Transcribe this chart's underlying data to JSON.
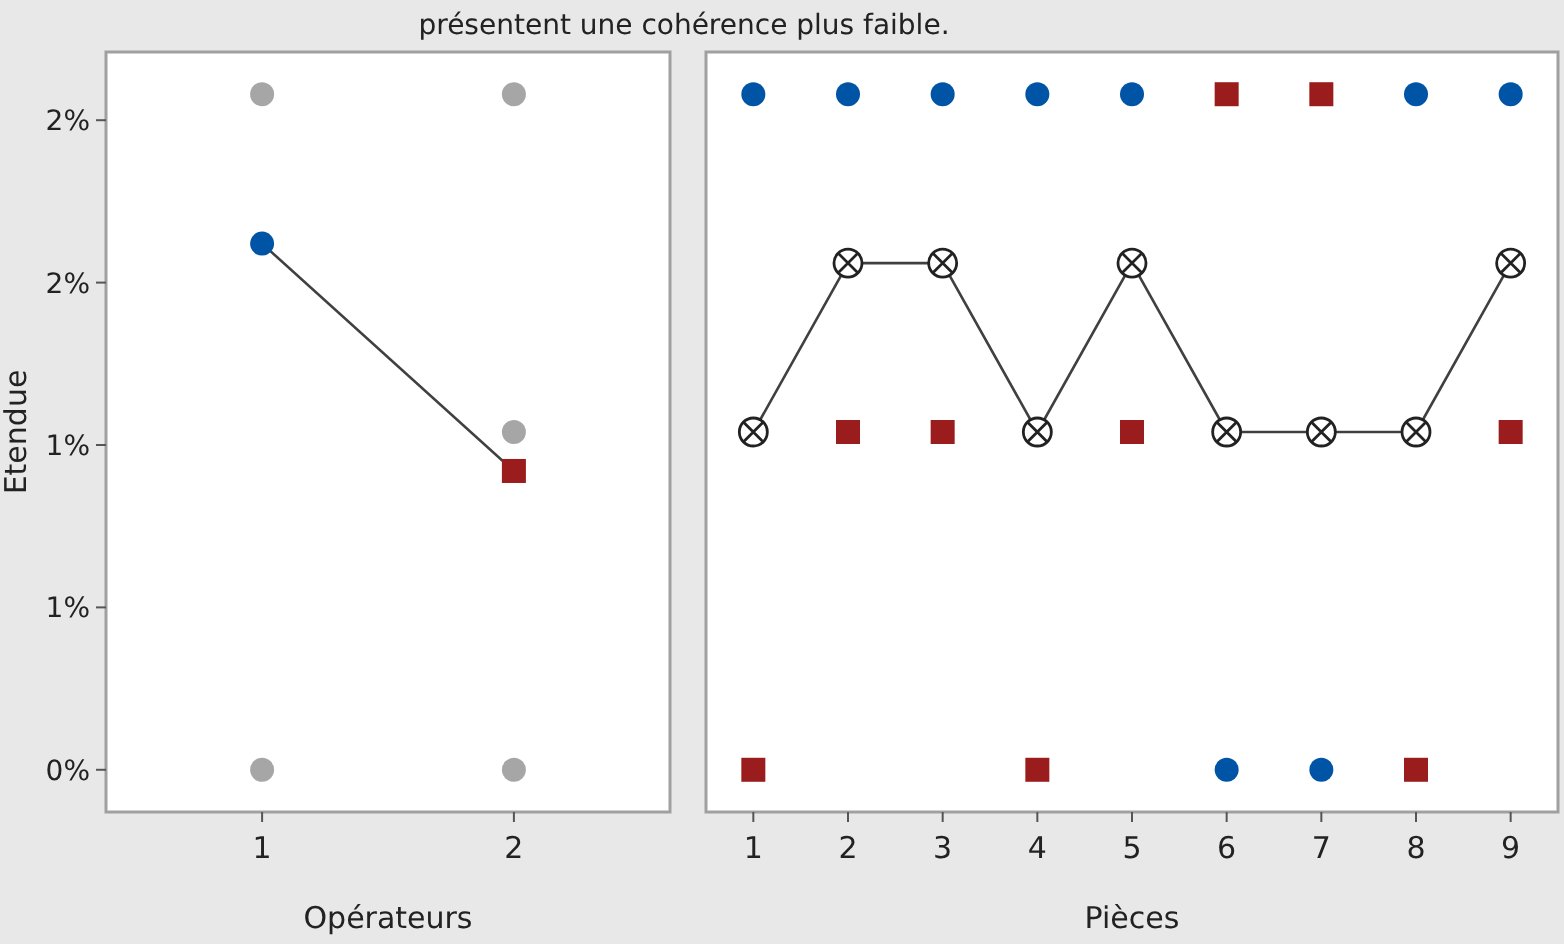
{
  "chart_data": [
    {
      "type": "scatter",
      "title": "présentent une cohérence plus faible.",
      "xlabel": "Opérateurs",
      "ylabel": "Etendue",
      "categories": [
        "1",
        "2"
      ],
      "ylim": [
        -0.13,
        2.21
      ],
      "yticks": [
        {
          "value": 0,
          "label": "0%"
        },
        {
          "value": 0.5,
          "label": "1%"
        },
        {
          "value": 1,
          "label": "1%"
        },
        {
          "value": 1.5,
          "label": "2%"
        },
        {
          "value": 2,
          "label": "2%"
        }
      ],
      "grid": false,
      "series": [
        {
          "color": "#a6a6a6",
          "marker": "circle",
          "x": [
            "1",
            "1",
            "2",
            "2",
            "2"
          ],
          "values": [
            0,
            2.08,
            0,
            1.04,
            2.08
          ]
        },
        {
          "type": "line",
          "color": "#404040",
          "marker": "none",
          "x": [
            "1",
            "2"
          ],
          "values": [
            1.62,
            0.92
          ]
        },
        {
          "color": "#0054a6",
          "marker": "circle",
          "x": [
            "1"
          ],
          "values": [
            1.62
          ]
        },
        {
          "color": "#9b1c1c",
          "marker": "square",
          "x": [
            "2"
          ],
          "values": [
            0.92
          ]
        }
      ]
    },
    {
      "type": "scatter",
      "xlabel": "Pièces",
      "categories": [
        "1",
        "2",
        "3",
        "4",
        "5",
        "6",
        "7",
        "8",
        "9"
      ],
      "ylim": [
        -0.13,
        2.21
      ],
      "tick_labels": "x",
      "grid": false,
      "series": [
        {
          "type": "line",
          "color": "#404040",
          "marker": "circle",
          "values": [
            1.04,
            1.56,
            1.56,
            1.04,
            1.56,
            1.04,
            1.04,
            1.04,
            1.56
          ]
        },
        {
          "color": "#0054a6",
          "marker": "circle",
          "values": [
            2.08,
            2.08,
            2.08,
            2.08,
            2.08,
            0,
            0,
            2.08,
            2.08
          ]
        },
        {
          "color": "#9b1c1c",
          "marker": "square",
          "values": [
            0,
            1.04,
            1.04,
            0,
            1.04,
            2.08,
            2.08,
            0,
            1.04
          ]
        }
      ]
    }
  ]
}
